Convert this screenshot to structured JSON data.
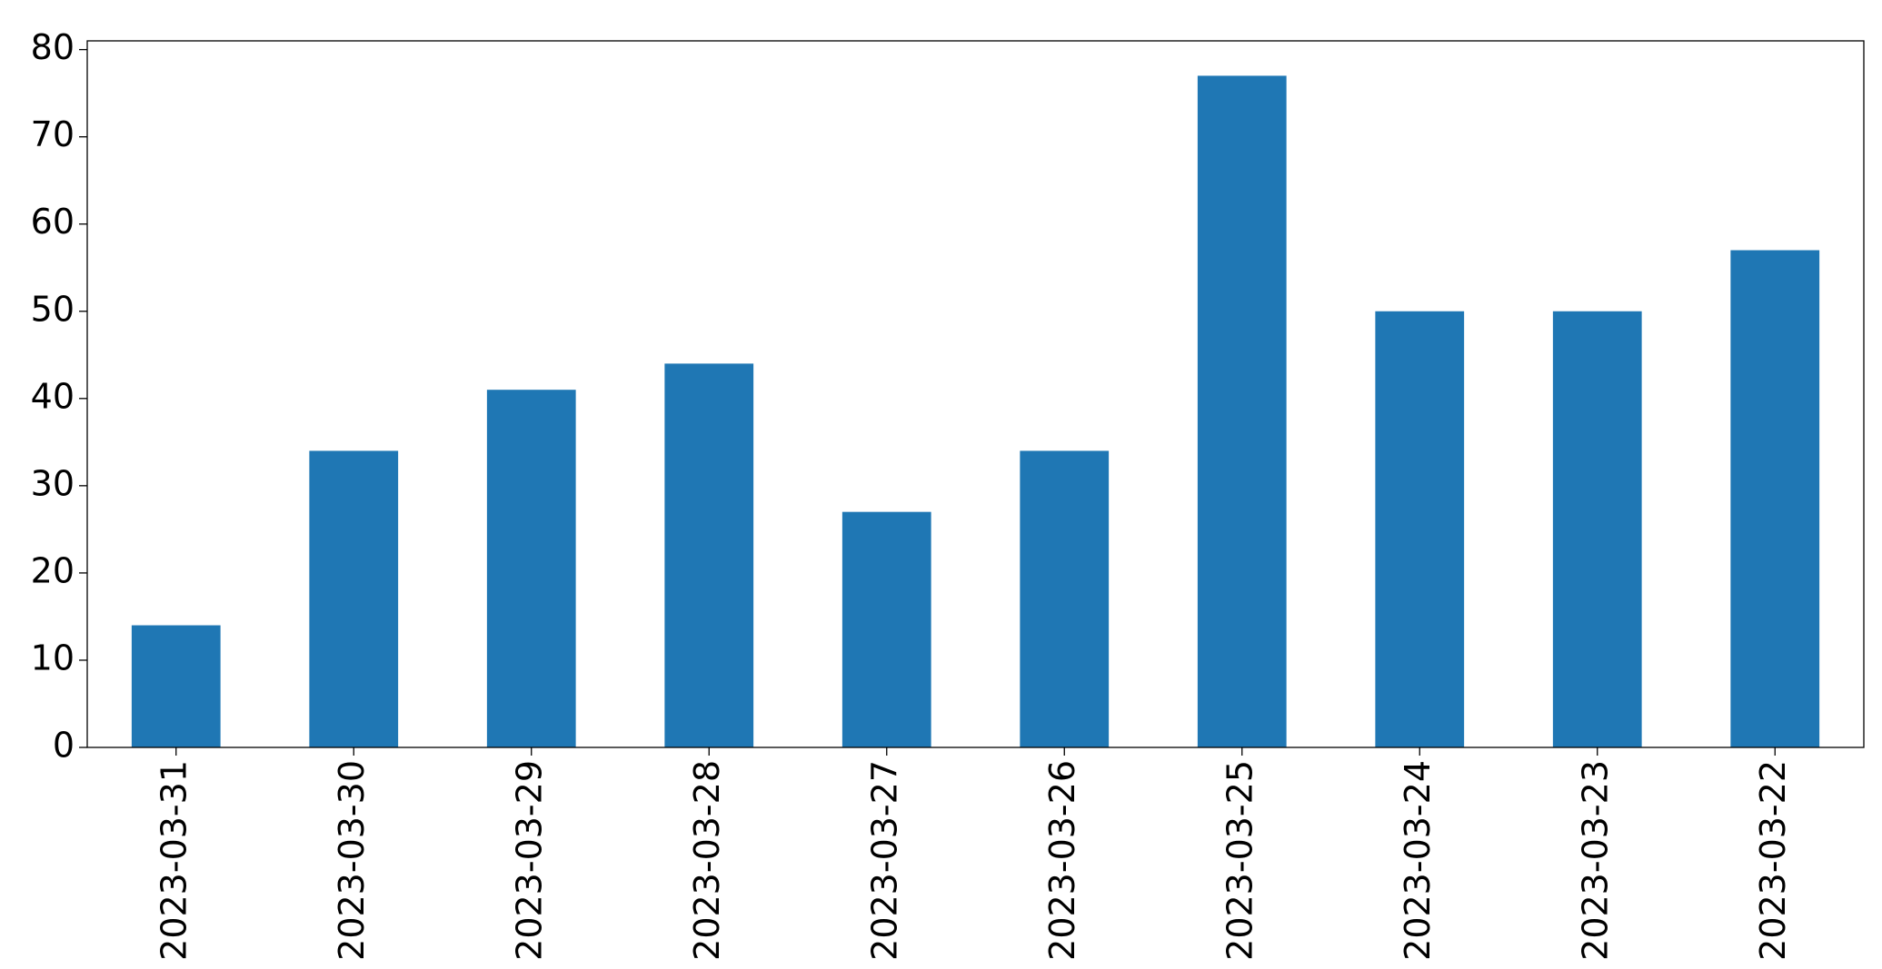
{
  "chart_data": {
    "type": "bar",
    "categories": [
      "2023-03-31",
      "2023-03-30",
      "2023-03-29",
      "2023-03-28",
      "2023-03-27",
      "2023-03-26",
      "2023-03-25",
      "2023-03-24",
      "2023-03-23",
      "2023-03-22"
    ],
    "values": [
      14,
      34,
      41,
      44,
      27,
      34,
      77,
      50,
      50,
      57
    ],
    "color": "#1f77b4",
    "ylim": [
      0,
      81
    ],
    "yticks": [
      0,
      10,
      20,
      30,
      40,
      50,
      60,
      70,
      80
    ],
    "grid": false
  }
}
